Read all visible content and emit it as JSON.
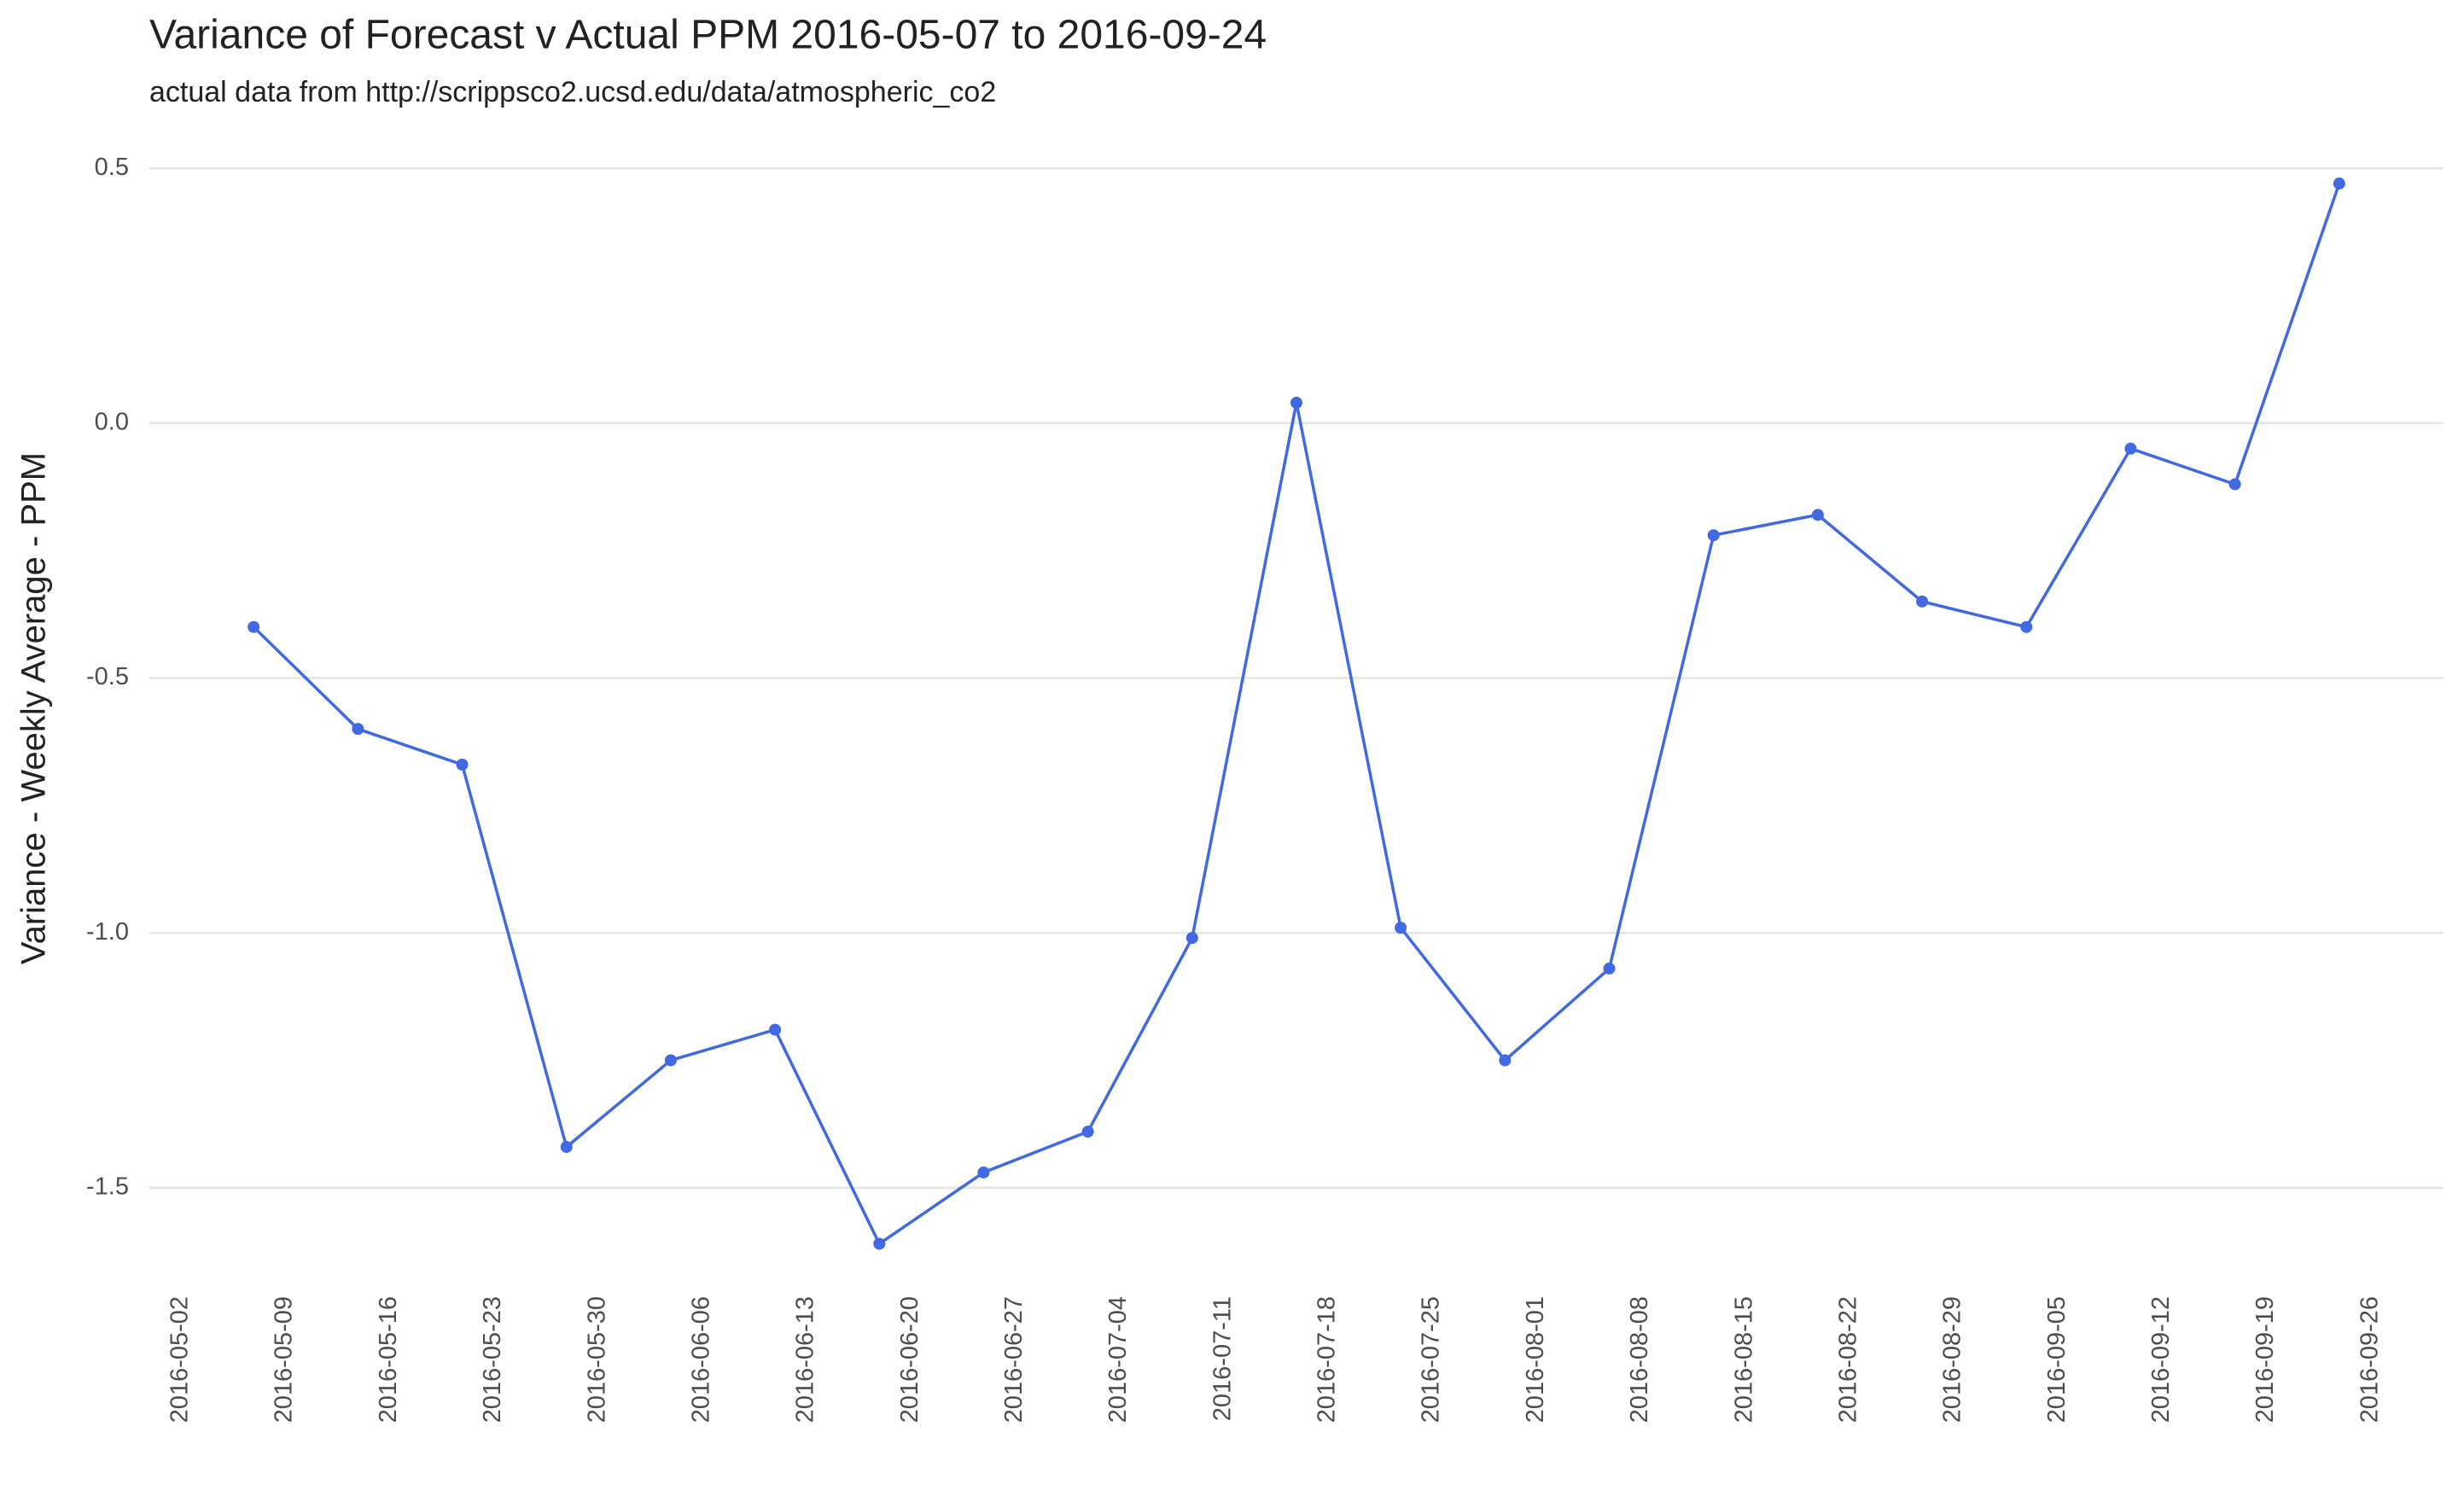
{
  "chart_data": {
    "type": "line",
    "title": "Variance of Forecast v Actual PPM 2016-05-07 to 2016-09-24",
    "subtitle": "actual data from http://scrippsco2.ucsd.edu/data/atmospheric_co2",
    "y_label": "Variance  - Weekly Average - PPM",
    "x": [
      "2016-05-07",
      "2016-05-14",
      "2016-05-21",
      "2016-05-28",
      "2016-06-04",
      "2016-06-11",
      "2016-06-18",
      "2016-06-25",
      "2016-07-02",
      "2016-07-09",
      "2016-07-16",
      "2016-07-23",
      "2016-07-30",
      "2016-08-06",
      "2016-08-13",
      "2016-08-20",
      "2016-08-27",
      "2016-09-03",
      "2016-09-10",
      "2016-09-17",
      "2016-09-24"
    ],
    "series": [
      {
        "color": "#4169e1",
        "values": [
          -0.4,
          -0.6,
          -0.67,
          -1.42,
          -1.25,
          -1.19,
          -1.61,
          -1.47,
          -1.39,
          -1.01,
          0.04,
          -0.99,
          -1.25,
          -1.07,
          -0.22,
          -0.18,
          -0.35,
          -0.4,
          -0.05,
          -0.12,
          0.47
        ]
      }
    ],
    "xlim": [
      "2016-04-30",
      "2016-10-01"
    ],
    "xticks": [
      "2016-05-02",
      "2016-05-09",
      "2016-05-16",
      "2016-05-23",
      "2016-05-30",
      "2016-06-06",
      "2016-06-13",
      "2016-06-20",
      "2016-06-27",
      "2016-07-04",
      "2016-07-11",
      "2016-07-18",
      "2016-07-25",
      "2016-08-01",
      "2016-08-08",
      "2016-08-15",
      "2016-08-22",
      "2016-08-29",
      "2016-09-05",
      "2016-09-12",
      "2016-09-19",
      "2016-09-26"
    ],
    "ylim": [
      -1.636,
      0.522
    ],
    "yticks": [
      {
        "value": 0.5,
        "label": "0.5"
      },
      {
        "value": 0,
        "label": "0.0"
      },
      {
        "value": -0.5,
        "label": "-0.5"
      },
      {
        "value": -1,
        "label": "-1.0"
      },
      {
        "value": -1.5,
        "label": "-1.5"
      }
    ],
    "grid": true
  }
}
